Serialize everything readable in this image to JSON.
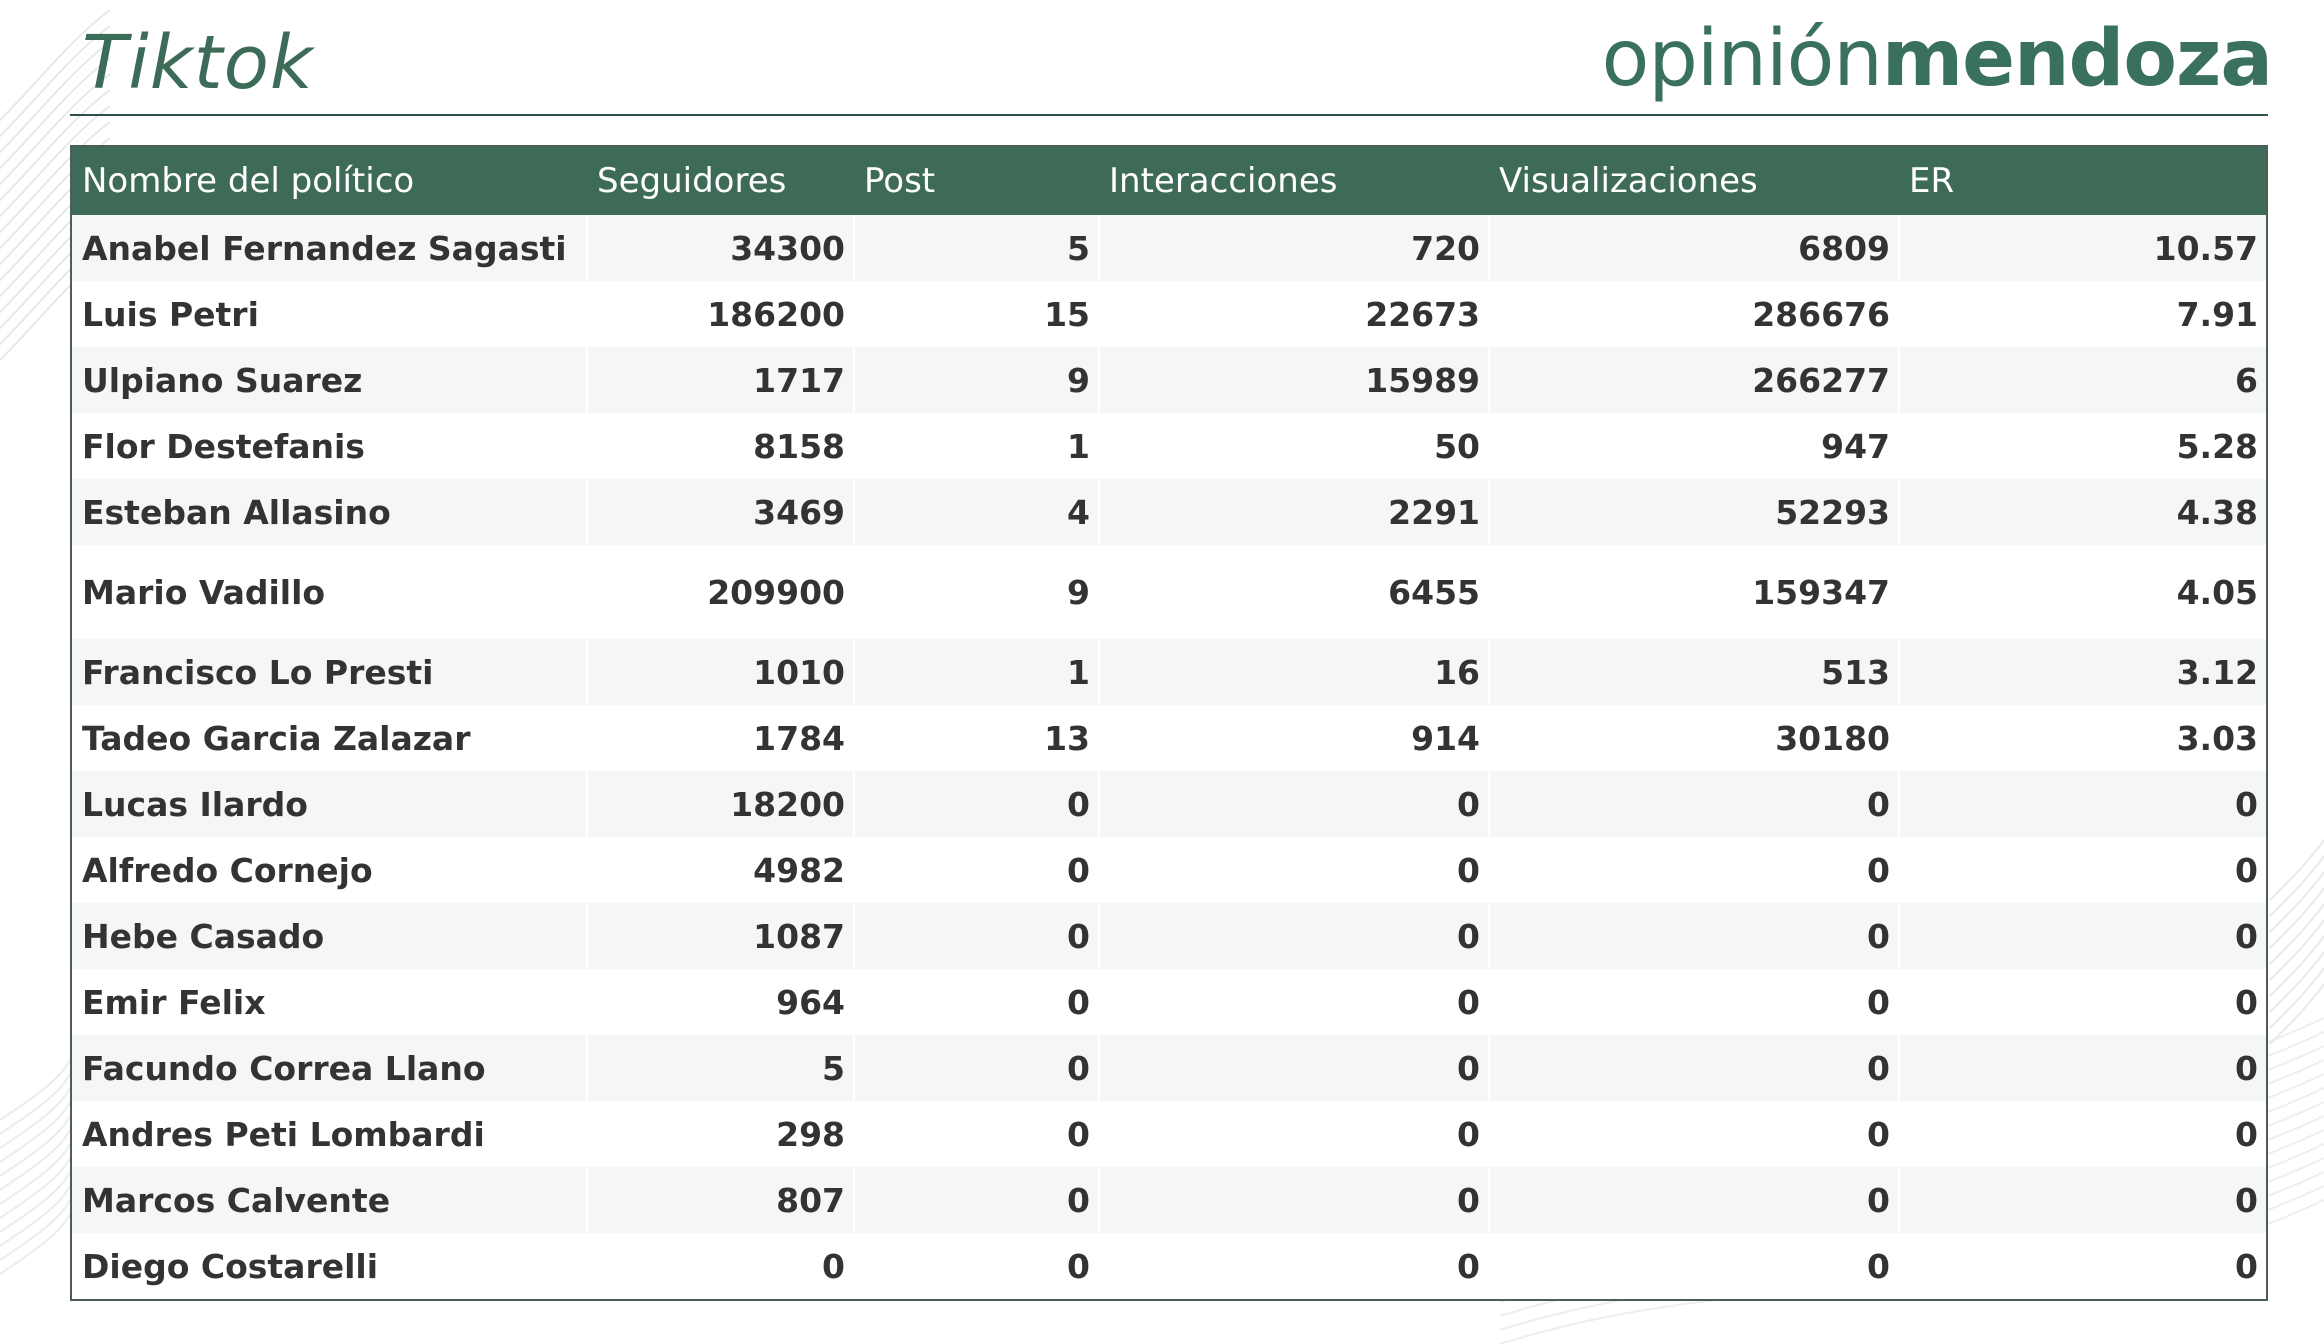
{
  "header": {
    "title": "Tiktok",
    "logo_light": "opinión",
    "logo_bold": "mendoza"
  },
  "colors": {
    "header_bg": "#3e6b57",
    "title_green": "#3c6b58",
    "logo_green": "#3a7060"
  },
  "chart_data": {
    "type": "table",
    "columns": [
      "Nombre del político",
      "Seguidores",
      "Post",
      "Interacciones",
      "Visualizaciones",
      "ER"
    ],
    "rows": [
      [
        "Anabel Fernandez Sagasti",
        "34300",
        "5",
        "720",
        "6809",
        "10.57"
      ],
      [
        "Luis Petri",
        "186200",
        "15",
        "22673",
        "286676",
        "7.91"
      ],
      [
        "Ulpiano Suarez",
        "1717",
        "9",
        "15989",
        "266277",
        "6"
      ],
      [
        "Flor Destefanis",
        "8158",
        "1",
        "50",
        "947",
        "5.28"
      ],
      [
        "Esteban Allasino",
        "3469",
        "4",
        "2291",
        "52293",
        "4.38"
      ],
      [
        "Mario Vadillo",
        "209900",
        "9",
        "6455",
        "159347",
        "4.05"
      ],
      [
        "Francisco Lo Presti",
        "1010",
        "1",
        "16",
        "513",
        "3.12"
      ],
      [
        "Tadeo Garcia Zalazar",
        "1784",
        "13",
        "914",
        "30180",
        "3.03"
      ],
      [
        "Lucas Ilardo",
        "18200",
        "0",
        "0",
        "0",
        "0"
      ],
      [
        "Alfredo Cornejo",
        "4982",
        "0",
        "0",
        "0",
        "0"
      ],
      [
        "Hebe Casado",
        "1087",
        "0",
        "0",
        "0",
        "0"
      ],
      [
        "Emir Felix",
        "964",
        "0",
        "0",
        "0",
        "0"
      ],
      [
        "Facundo Correa Llano",
        "5",
        "0",
        "0",
        "0",
        "0"
      ],
      [
        "Andres Peti Lombardi",
        "298",
        "0",
        "0",
        "0",
        "0"
      ],
      [
        "Marcos Calvente",
        "807",
        "0",
        "0",
        "0",
        "0"
      ],
      [
        "Diego Costarelli",
        "0",
        "0",
        "0",
        "0",
        "0"
      ]
    ]
  }
}
